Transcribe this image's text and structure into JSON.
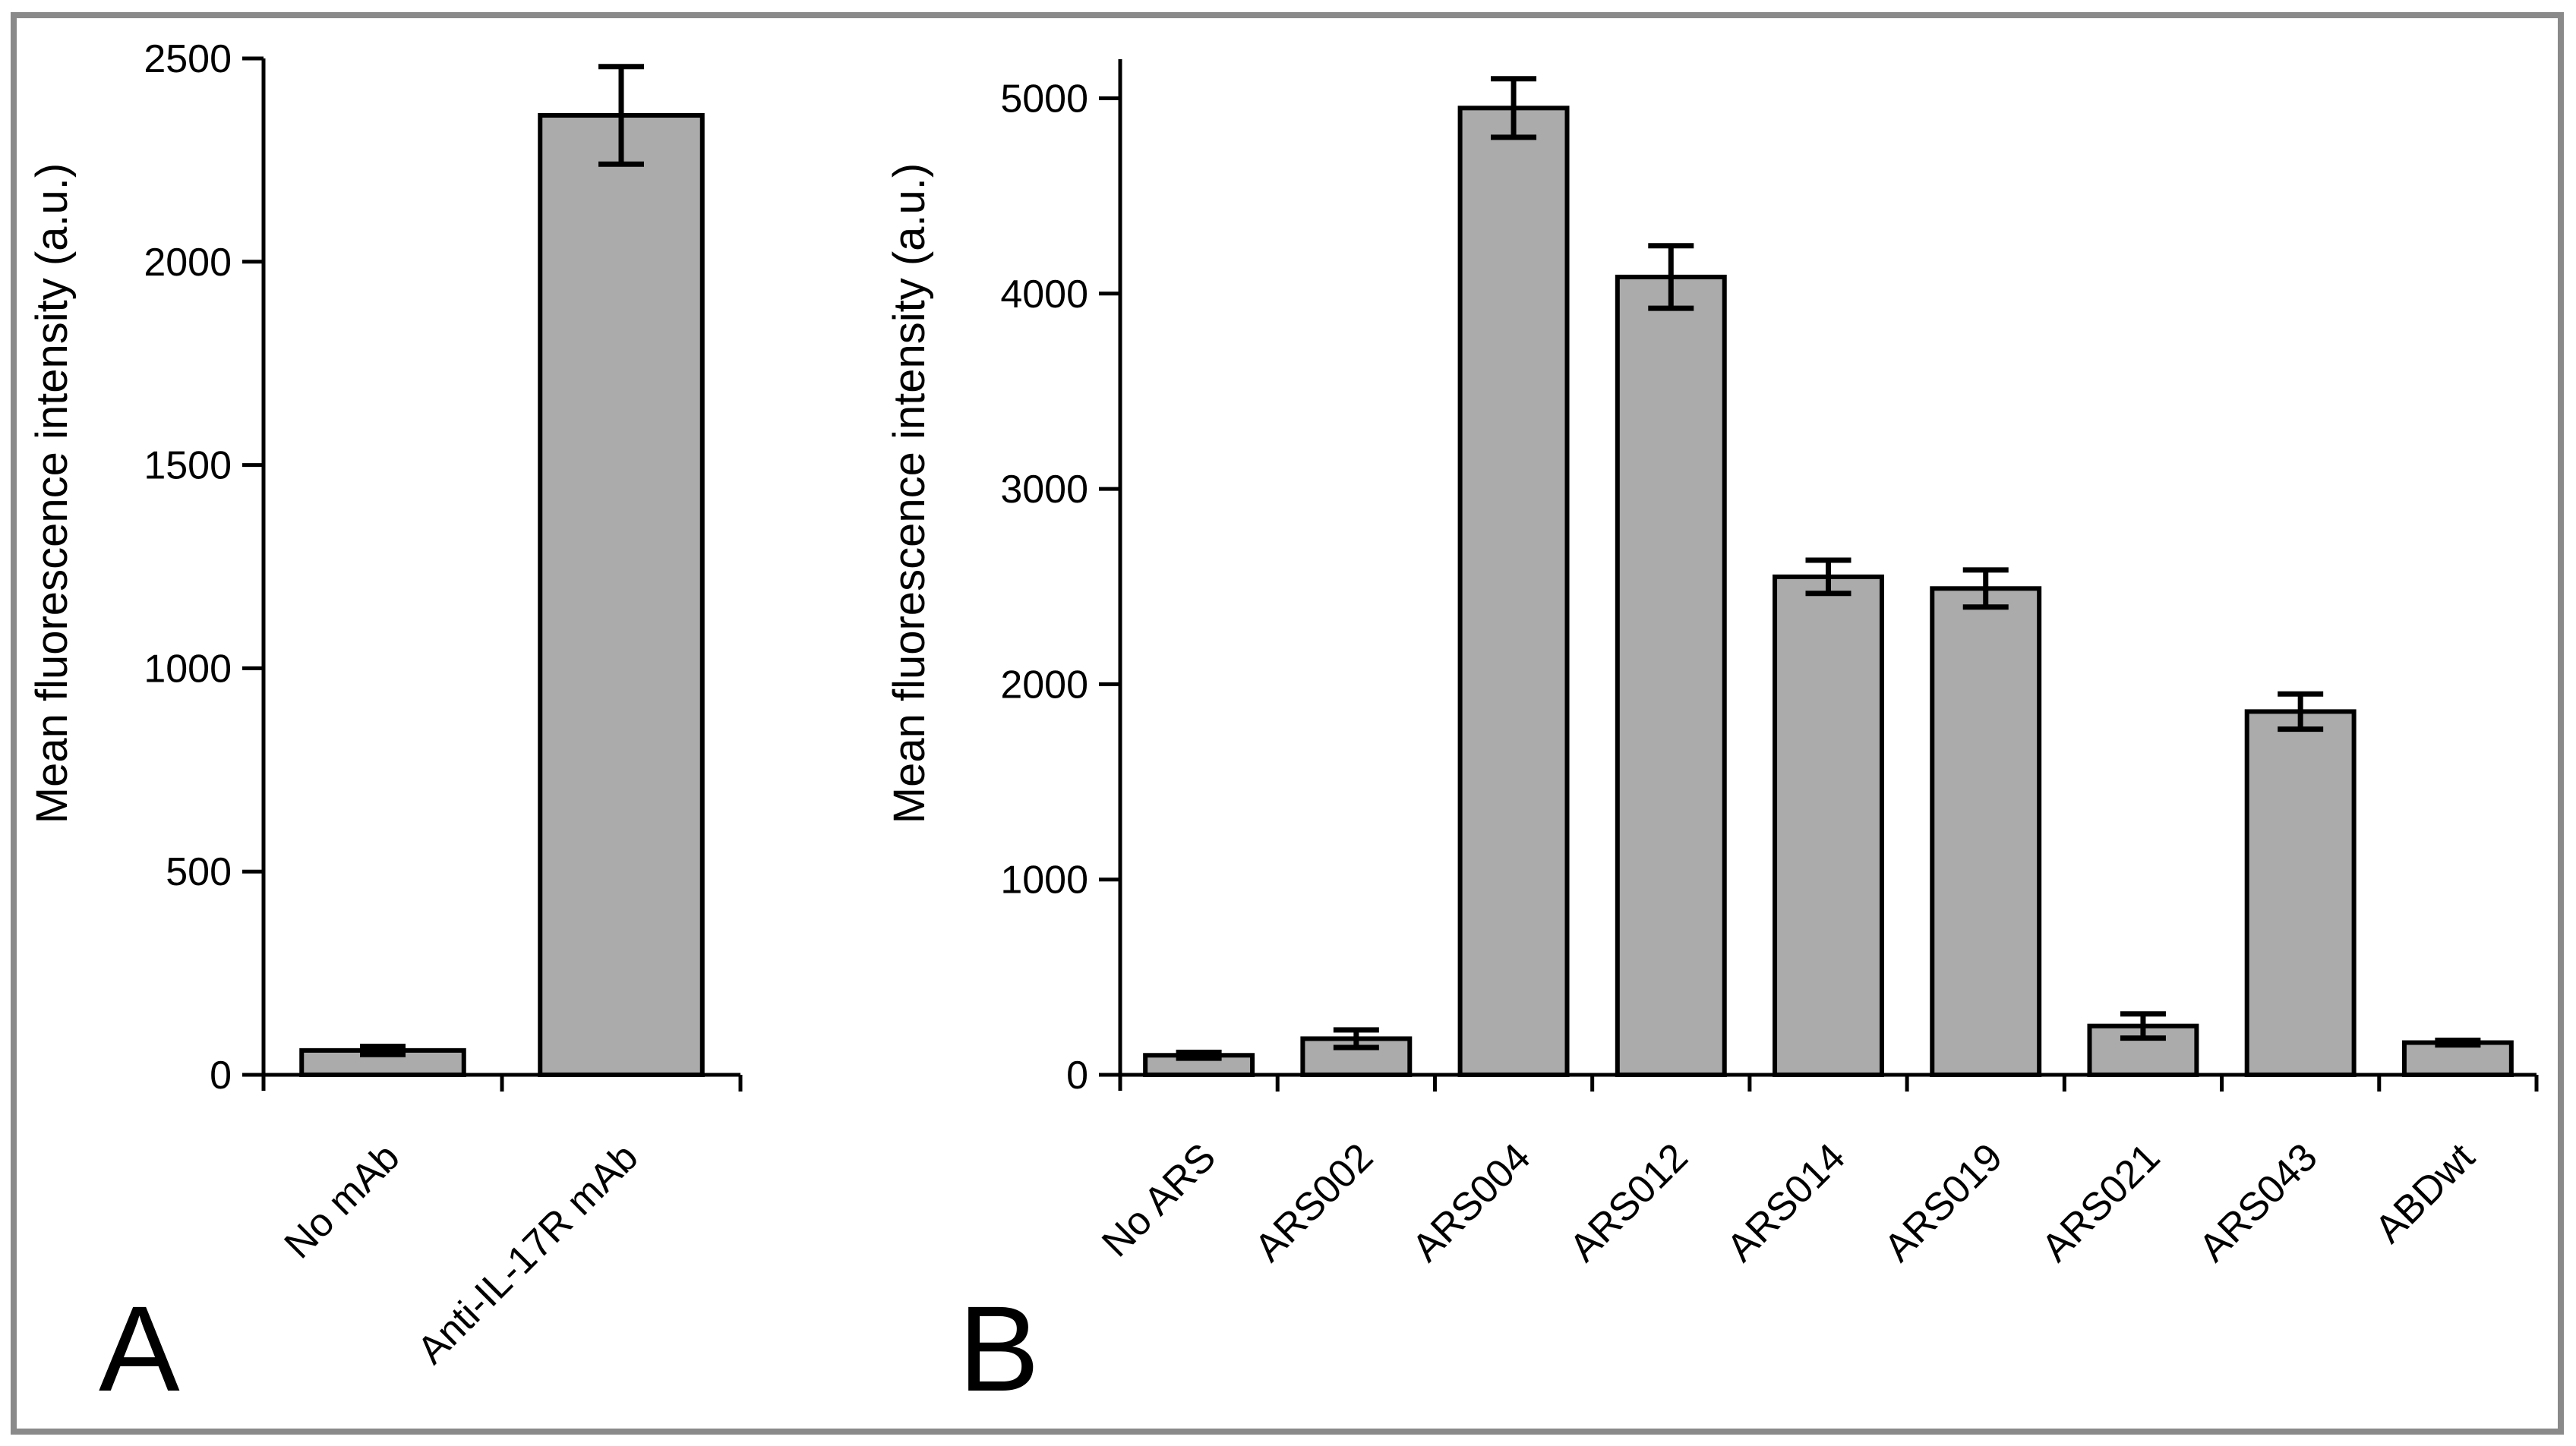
{
  "figure": {
    "frame_color": "#8a8a8a",
    "background_color": "#ffffff",
    "bar_fill_color": "#ababab",
    "bar_stroke_color": "#000000",
    "axis_color": "#000000"
  },
  "chart_data": [
    {
      "type": "bar",
      "panel_label": "A",
      "title": "",
      "xlabel": "",
      "ylabel": "Mean fluorescence intensity (a.u.)",
      "categories": [
        "No mAb",
        "Anti-IL-17R mAb"
      ],
      "values": [
        60,
        2360
      ],
      "errors": [
        10,
        120
      ],
      "ylim": [
        0,
        2500
      ],
      "yticks": [
        0,
        500,
        1000,
        1500,
        2000,
        2500
      ],
      "grid": false,
      "legend": "none",
      "bar_color": "#ababab",
      "error_bar_color": "#000000"
    },
    {
      "type": "bar",
      "panel_label": "B",
      "title": "",
      "xlabel": "",
      "ylabel": "Mean fluorescence intensity (a.u.)",
      "categories": [
        "No ARS",
        "ARS002",
        "ARS004",
        "ARS012",
        "ARS014",
        "ARS019",
        "ARS021",
        "ARS043",
        "ABDwt"
      ],
      "values": [
        100,
        185,
        4950,
        4085,
        2550,
        2490,
        250,
        1860,
        165
      ],
      "errors": [
        15,
        45,
        150,
        160,
        85,
        95,
        62,
        90,
        12
      ],
      "ylim": [
        0,
        5200
      ],
      "yticks": [
        0,
        1000,
        2000,
        3000,
        4000,
        5000
      ],
      "grid": false,
      "legend": "none",
      "bar_color": "#ababab",
      "error_bar_color": "#000000"
    }
  ]
}
